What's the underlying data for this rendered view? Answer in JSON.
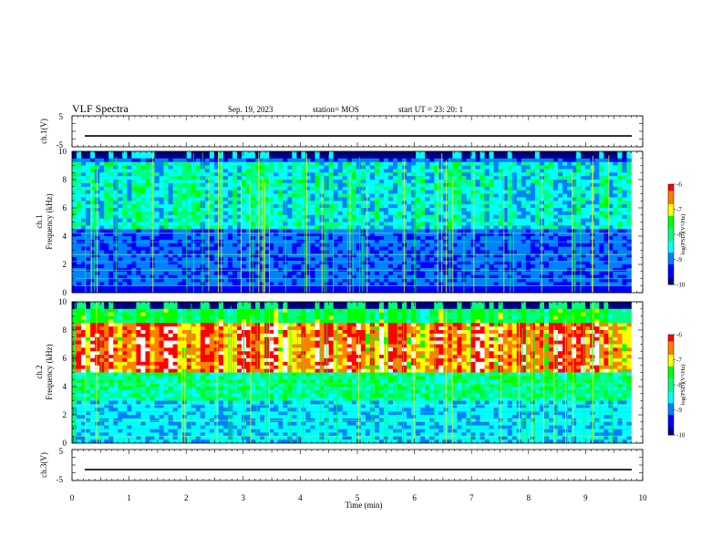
{
  "header": {
    "title": "VLF Spectra",
    "date": "Sep. 19, 2023",
    "station": "station= MOS",
    "start_ut": "start  UT =   23: 20: 1"
  },
  "colors": {
    "background": "#ffffff",
    "axis": "#000000",
    "spectrogram_floor": "#000000",
    "colormap": [
      "#000080",
      "#0000ff",
      "#0080ff",
      "#00ffff",
      "#00ff80",
      "#00ff00",
      "#ffff00",
      "#ff8000",
      "#ff0000",
      "#ffffff"
    ]
  },
  "chart_data": [
    {
      "type": "line",
      "id": "ch1-voltage",
      "ylabel": "ch.1(V)",
      "yticks": [
        "5",
        "-5"
      ],
      "ylim": [
        -5,
        5
      ],
      "x": [
        0,
        10
      ],
      "values": [
        -1.5,
        -1.5
      ],
      "xlim": [
        0,
        10
      ]
    },
    {
      "type": "heatmap",
      "id": "ch1-spectrogram",
      "ylabel_line1": "ch.1",
      "ylabel_line2": "Frequency (kHz)",
      "yticks": [
        "0",
        "2",
        "4",
        "6",
        "8",
        "10"
      ],
      "ylim": [
        0,
        10
      ],
      "xlim": [
        0,
        10
      ],
      "x_end_data": 9.8,
      "colorbar": {
        "label": "log(PSD)(V²/Hz)",
        "ticks": [
          "-6",
          "-7",
          "-8",
          "-9",
          "-10"
        ],
        "range": [
          -10,
          -6
        ]
      }
    },
    {
      "type": "heatmap",
      "id": "ch2-spectrogram",
      "ylabel_line1": "ch.2",
      "ylabel_line2": "Frequency (kHz)",
      "yticks": [
        "0",
        "2",
        "4",
        "6",
        "8",
        "10"
      ],
      "ylim": [
        0,
        10
      ],
      "xlim": [
        0,
        10
      ],
      "x_end_data": 9.8,
      "colorbar": {
        "label": "log(PSD)(V²/Hz)",
        "ticks": [
          "-6",
          "-7",
          "-8",
          "-9",
          "-10"
        ],
        "range": [
          -10,
          -6
        ]
      }
    },
    {
      "type": "line",
      "id": "ch3-voltage",
      "ylabel": "ch.3(V)",
      "yticks": [
        "5",
        "-5"
      ],
      "ylim": [
        -5,
        5
      ],
      "x": [
        0,
        10
      ],
      "values": [
        -1.5,
        -1.5
      ],
      "xlim": [
        0,
        10
      ],
      "xlabel": "Time (min)",
      "xticks": [
        "0",
        "1",
        "2",
        "3",
        "4",
        "5",
        "6",
        "7",
        "8",
        "9",
        "10"
      ]
    }
  ]
}
